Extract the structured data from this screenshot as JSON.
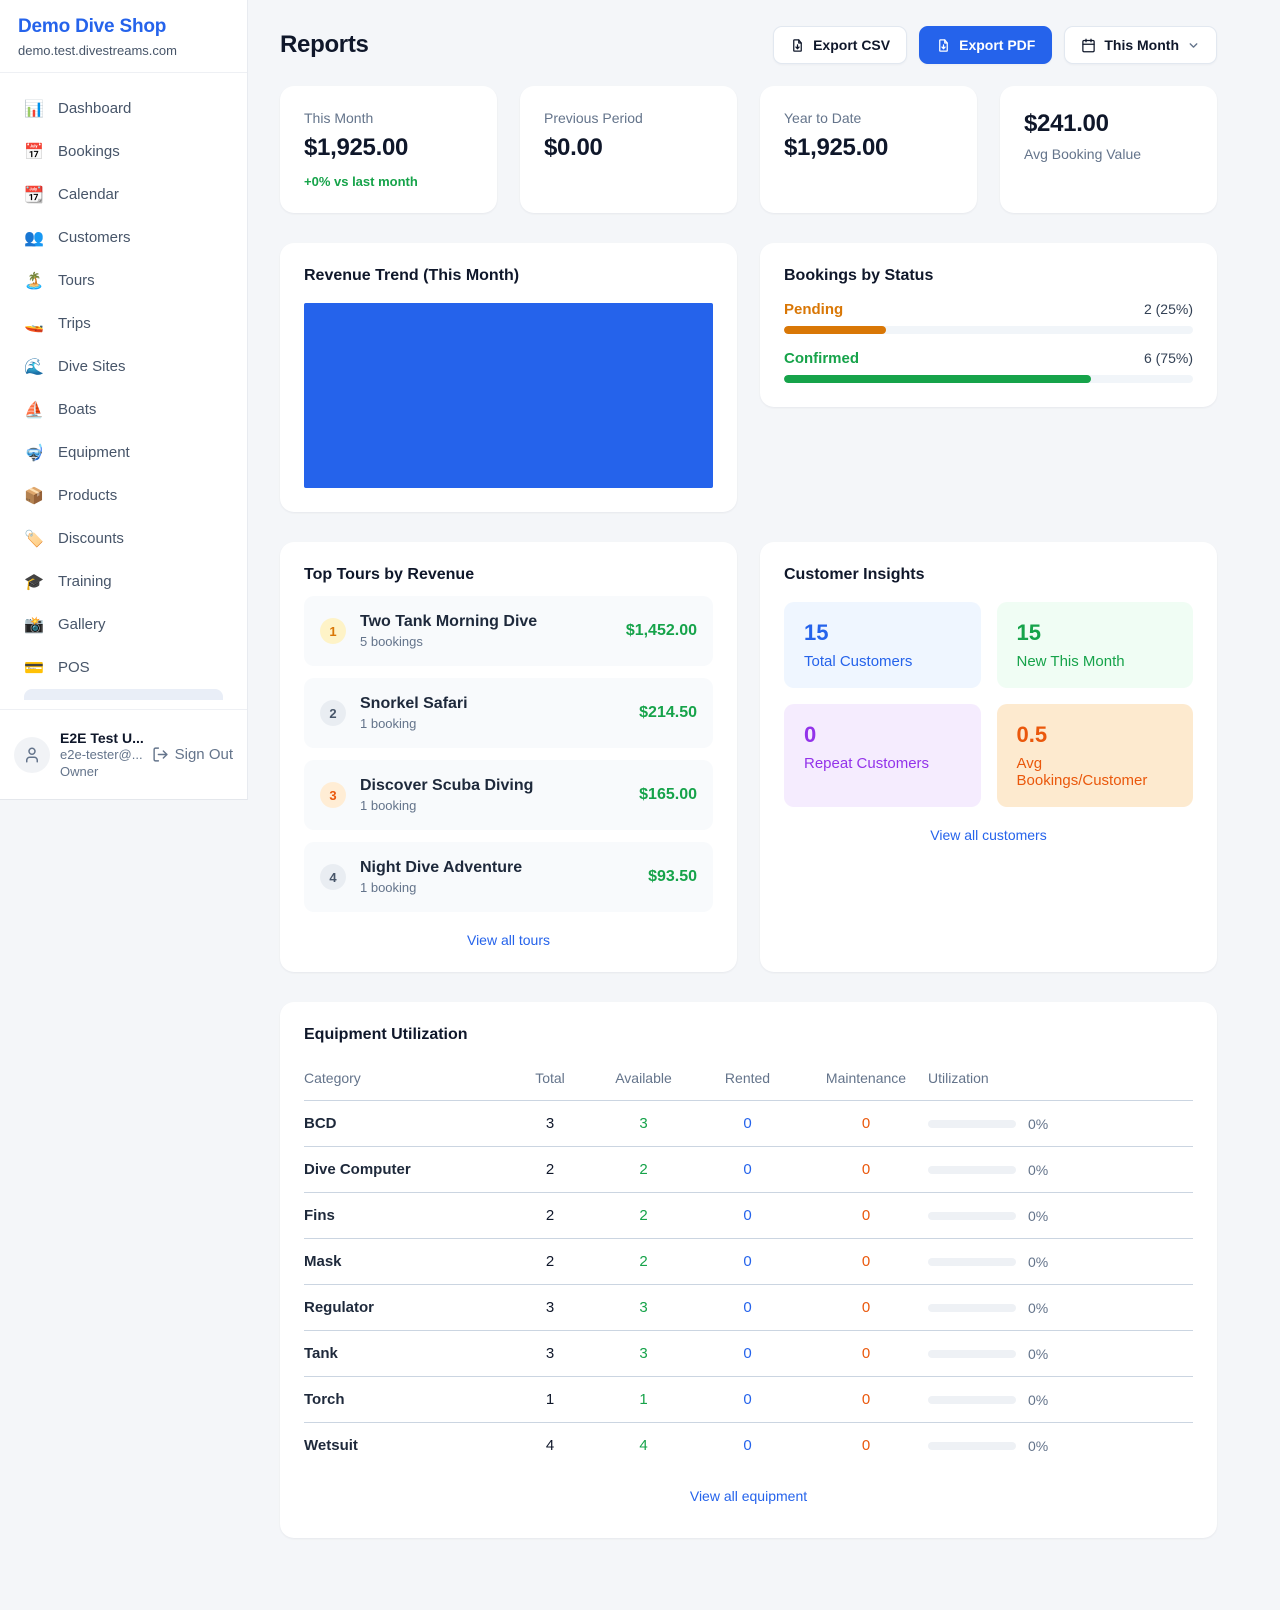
{
  "colors": {
    "accent": "#2563eb",
    "success": "#16a34a",
    "pending": "#d97706",
    "maintenance": "#ea580c",
    "purple": "#9333ea",
    "chart_bar": "#2563eb"
  },
  "sidebar": {
    "shop_name": "Demo Dive Shop",
    "shop_domain": "demo.test.divestreams.com",
    "items": [
      {
        "icon": "📊",
        "label": "Dashboard"
      },
      {
        "icon": "📅",
        "label": "Bookings"
      },
      {
        "icon": "📆",
        "label": "Calendar"
      },
      {
        "icon": "👥",
        "label": "Customers"
      },
      {
        "icon": "🏝️",
        "label": "Tours"
      },
      {
        "icon": "🚤",
        "label": "Trips"
      },
      {
        "icon": "🌊",
        "label": "Dive Sites"
      },
      {
        "icon": "⛵",
        "label": "Boats"
      },
      {
        "icon": "🤿",
        "label": "Equipment"
      },
      {
        "icon": "📦",
        "label": "Products"
      },
      {
        "icon": "🏷️",
        "label": "Discounts"
      },
      {
        "icon": "🎓",
        "label": "Training"
      },
      {
        "icon": "📸",
        "label": "Gallery"
      },
      {
        "icon": "💳",
        "label": "POS"
      }
    ],
    "user": {
      "name": "E2E Test U...",
      "email": "e2e-tester@...",
      "role": "Owner",
      "sign_out_label": "Sign Out"
    }
  },
  "header": {
    "title": "Reports",
    "export_csv_label": "Export CSV",
    "export_pdf_label": "Export PDF",
    "period_label": "This Month"
  },
  "stats": [
    {
      "label": "This Month",
      "value": "$1,925.00",
      "delta": "+0% vs last month"
    },
    {
      "label": "Previous Period",
      "value": "$0.00"
    },
    {
      "label": "Year to Date",
      "value": "$1,925.00"
    },
    {
      "value": "$241.00",
      "label": "Avg Booking Value"
    }
  ],
  "revenue_trend": {
    "title": "Revenue Trend (This Month)"
  },
  "bookings_by_status": {
    "title": "Bookings by Status",
    "rows": [
      {
        "label": "Pending",
        "count": "2 (25%)",
        "width": "25%"
      },
      {
        "label": "Confirmed",
        "count": "6 (75%)",
        "width": "75%"
      }
    ]
  },
  "top_tours": {
    "title": "Top Tours by Revenue",
    "rows": [
      {
        "rank": "1",
        "name": "Two Tank Morning Dive",
        "bookings": "5 bookings",
        "revenue": "$1,452.00"
      },
      {
        "rank": "2",
        "name": "Snorkel Safari",
        "bookings": "1 booking",
        "revenue": "$214.50"
      },
      {
        "rank": "3",
        "name": "Discover Scuba Diving",
        "bookings": "1 booking",
        "revenue": "$165.00"
      },
      {
        "rank": "4",
        "name": "Night Dive Adventure",
        "bookings": "1 booking",
        "revenue": "$93.50"
      }
    ],
    "view_all": "View all tours"
  },
  "customer_insights": {
    "title": "Customer Insights",
    "boxes": [
      {
        "value": "15",
        "label": "Total Customers"
      },
      {
        "value": "15",
        "label": "New This Month"
      },
      {
        "value": "0",
        "label": "Repeat Customers"
      },
      {
        "value": "0.5",
        "label": "Avg Bookings/Customer"
      }
    ],
    "view_all": "View all customers"
  },
  "equipment": {
    "title": "Equipment Utilization",
    "columns": [
      "Category",
      "Total",
      "Available",
      "Rented",
      "Maintenance",
      "Utilization"
    ],
    "rows": [
      {
        "category": "BCD",
        "total": "3",
        "available": "3",
        "rented": "0",
        "maintenance": "0",
        "utilization": "0%"
      },
      {
        "category": "Dive Computer",
        "total": "2",
        "available": "2",
        "rented": "0",
        "maintenance": "0",
        "utilization": "0%"
      },
      {
        "category": "Fins",
        "total": "2",
        "available": "2",
        "rented": "0",
        "maintenance": "0",
        "utilization": "0%"
      },
      {
        "category": "Mask",
        "total": "2",
        "available": "2",
        "rented": "0",
        "maintenance": "0",
        "utilization": "0%"
      },
      {
        "category": "Regulator",
        "total": "3",
        "available": "3",
        "rented": "0",
        "maintenance": "0",
        "utilization": "0%"
      },
      {
        "category": "Tank",
        "total": "3",
        "available": "3",
        "rented": "0",
        "maintenance": "0",
        "utilization": "0%"
      },
      {
        "category": "Torch",
        "total": "1",
        "available": "1",
        "rented": "0",
        "maintenance": "0",
        "utilization": "0%"
      },
      {
        "category": "Wetsuit",
        "total": "4",
        "available": "4",
        "rented": "0",
        "maintenance": "0",
        "utilization": "0%"
      }
    ],
    "view_all": "View all equipment"
  },
  "chart_data": [
    {
      "type": "bar",
      "title": "Revenue Trend (This Month)",
      "categories": [
        "This Month"
      ],
      "values": [
        1925
      ],
      "xlabel": "",
      "ylabel": "",
      "legend": false,
      "grid": false
    },
    {
      "type": "bar",
      "title": "Bookings by Status",
      "categories": [
        "Pending",
        "Confirmed"
      ],
      "values": [
        2,
        6
      ],
      "percentages": [
        25,
        75
      ],
      "orientation": "horizontal"
    }
  ]
}
